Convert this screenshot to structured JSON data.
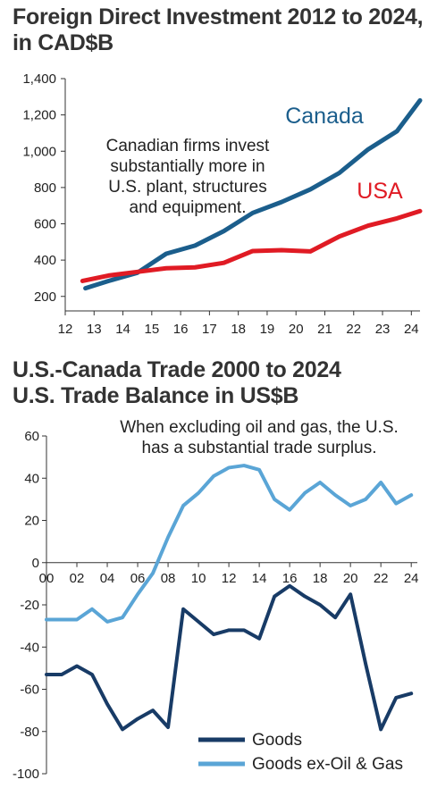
{
  "chart_data": [
    {
      "type": "line",
      "title": "Foreign Direct Investment 2012 to 2024, in CAD$B",
      "xlabel": "",
      "ylabel": "",
      "x_ticks": [
        "12",
        "13",
        "14",
        "15",
        "16",
        "17",
        "18",
        "19",
        "20",
        "21",
        "22",
        "23",
        "24"
      ],
      "y_ticks": [
        "200",
        "400",
        "600",
        "800",
        "1,000",
        "1,200",
        "1,400"
      ],
      "xlim": [
        12,
        24.3
      ],
      "ylim": [
        120,
        1400
      ],
      "annotation": [
        "Canadian firms invest",
        "substantially more in",
        "U.S. plant, structures",
        "and equipment."
      ],
      "grid": false,
      "series": [
        {
          "name": "Canada",
          "color": "#1b5e8c",
          "x": [
            12.7,
            13.5,
            14.5,
            15.5,
            16.5,
            17.5,
            18.5,
            19.5,
            20.5,
            21.5,
            22.5,
            23.5,
            24.3
          ],
          "y": [
            245,
            285,
            330,
            435,
            480,
            560,
            660,
            720,
            790,
            880,
            1010,
            1110,
            1280
          ]
        },
        {
          "name": "USA",
          "color": "#e01b24",
          "x": [
            12.6,
            13.5,
            14.5,
            15.5,
            16.5,
            17.5,
            18.5,
            19.5,
            20.5,
            21.5,
            22.5,
            23.5,
            24.3
          ],
          "y": [
            285,
            315,
            335,
            355,
            360,
            385,
            450,
            455,
            448,
            530,
            590,
            630,
            670
          ]
        }
      ]
    },
    {
      "type": "line",
      "title": "U.S.-Canada Trade 2000 to 2024 U.S. Trade Balance in US$B",
      "xlabel": "",
      "ylabel": "",
      "x_ticks": [
        "00",
        "02",
        "04",
        "06",
        "08",
        "10",
        "12",
        "14",
        "16",
        "18",
        "20",
        "22",
        "24"
      ],
      "y_ticks": [
        "60",
        "40",
        "20",
        "0",
        "-20",
        "-40",
        "-60",
        "-80",
        "-100"
      ],
      "xlim": [
        0,
        24.4
      ],
      "ylim": [
        -100,
        60
      ],
      "annotation": [
        "When excluding oil and gas, the U.S.",
        "has a substantial trade surplus."
      ],
      "grid": false,
      "legend": "bottom-right",
      "series": [
        {
          "name": "Goods",
          "color": "#183b66",
          "x": [
            0,
            1,
            2,
            3,
            4,
            5,
            6,
            7,
            8,
            9,
            10,
            11,
            12,
            13,
            14,
            15,
            16,
            17,
            18,
            19,
            20,
            21,
            22,
            23,
            24
          ],
          "y": [
            -53,
            -53,
            -49,
            -53,
            -67,
            -79,
            -74,
            -70,
            -78,
            -22,
            -28,
            -34,
            -32,
            -32,
            -36,
            -16,
            -11,
            -16,
            -20,
            -26,
            -15,
            -48,
            -79,
            -64,
            -62
          ]
        },
        {
          "name": "Goods ex-Oil & Gas",
          "color": "#5aa5d6",
          "x": [
            0,
            1,
            2,
            3,
            4,
            5,
            6,
            7,
            8,
            9,
            10,
            11,
            12,
            13,
            14,
            15,
            16,
            17,
            18,
            19,
            20,
            21,
            22,
            23,
            24
          ],
          "y": [
            -27,
            -27,
            -27,
            -22,
            -28,
            -26,
            -15,
            -5,
            12,
            27,
            33,
            41,
            45,
            46,
            44,
            30,
            25,
            33,
            38,
            32,
            27,
            30,
            38,
            28,
            32
          ]
        }
      ]
    }
  ]
}
